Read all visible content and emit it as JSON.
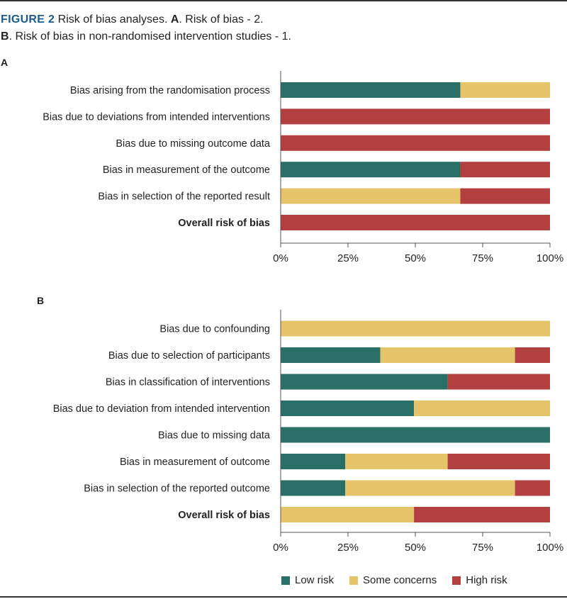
{
  "caption": {
    "figure_label": "FIGURE 2",
    "line1_rest": " Risk of bias analyses. ",
    "letter_a": "A",
    "line1_end": ". Risk of bias - 2.",
    "letter_b": "B",
    "line2_end": ". Risk of bias in non-randomised intervention studies - 1."
  },
  "colors": {
    "low": "#2a6f65",
    "some": "#e6c56a",
    "high": "#b34040",
    "axis": "#555555"
  },
  "legend": [
    {
      "key": "low",
      "label": "Low risk"
    },
    {
      "key": "some",
      "label": "Some concerns"
    },
    {
      "key": "high",
      "label": "High risk"
    }
  ],
  "chart_data": [
    {
      "type": "bar",
      "orientation": "horizontal",
      "stacked": true,
      "panel": "A",
      "title": "Risk of bias - 2",
      "categories": [
        "Bias arising from the randomisation process",
        "Bias due to deviations from intended interventions",
        "Bias due to missing outcome data",
        "Bias in measurement of the outcome",
        "Bias in selection of the reported result",
        "Overall risk of bias"
      ],
      "bold_categories": [
        "Overall risk of bias"
      ],
      "series": [
        {
          "name": "Low risk",
          "key": "low",
          "values": [
            66.7,
            0,
            0,
            66.7,
            0,
            0
          ]
        },
        {
          "name": "Some concerns",
          "key": "some",
          "values": [
            33.3,
            0,
            0,
            0,
            66.7,
            0
          ]
        },
        {
          "name": "High risk",
          "key": "high",
          "values": [
            0,
            100,
            100,
            33.3,
            33.3,
            100
          ]
        }
      ],
      "xlim": [
        0,
        100
      ],
      "xticks": [
        "0%",
        "25%",
        "50%",
        "75%",
        "100%"
      ],
      "legend_position": "bottom"
    },
    {
      "type": "bar",
      "orientation": "horizontal",
      "stacked": true,
      "panel": "B",
      "title": "Risk of bias in non-randomised intervention studies - 1",
      "categories": [
        "Bias due to confounding",
        "Bias due to selection of participants",
        "Bias in classification of interventions",
        "Bias due to deviation from intended intervention",
        "Bias due to missing data",
        "Bias in measurement of outcome",
        "Bias in selection of the reported outcome",
        "Overall risk of bias"
      ],
      "bold_categories": [
        "Overall risk of bias"
      ],
      "series": [
        {
          "name": "Low risk",
          "key": "low",
          "values": [
            0,
            37,
            62,
            49.5,
            100,
            24,
            24,
            0
          ]
        },
        {
          "name": "Some concerns",
          "key": "some",
          "values": [
            100,
            50,
            0,
            50.5,
            0,
            38,
            63,
            49.5
          ]
        },
        {
          "name": "High risk",
          "key": "high",
          "values": [
            0,
            13,
            38,
            0,
            0,
            38,
            13,
            50.5
          ]
        }
      ],
      "xlim": [
        0,
        100
      ],
      "xticks": [
        "0%",
        "25%",
        "50%",
        "75%",
        "100%"
      ],
      "legend_position": "bottom"
    }
  ]
}
